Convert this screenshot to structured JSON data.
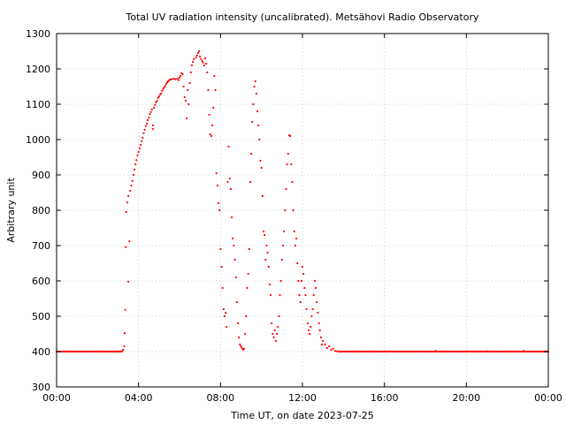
{
  "chart_data": {
    "type": "scatter",
    "title": "Total UV radiation intensity (uncalibrated). Metsähovi Radio Observatory",
    "xlabel": "Time UT, on date 2023-07-25",
    "ylabel": "Arbitrary unit",
    "xlim": [
      0,
      24
    ],
    "ylim": [
      300,
      1300
    ],
    "x_ticks": [
      {
        "value": 0,
        "label": "00:00"
      },
      {
        "value": 4,
        "label": "04:00"
      },
      {
        "value": 8,
        "label": "08:00"
      },
      {
        "value": 12,
        "label": "12:00"
      },
      {
        "value": 16,
        "label": "16:00"
      },
      {
        "value": 20,
        "label": "20:00"
      },
      {
        "value": 24,
        "label": "00:00"
      }
    ],
    "y_ticks": [
      {
        "value": 300,
        "label": "300"
      },
      {
        "value": 400,
        "label": "400"
      },
      {
        "value": 500,
        "label": "500"
      },
      {
        "value": 600,
        "label": "600"
      },
      {
        "value": 700,
        "label": "700"
      },
      {
        "value": 800,
        "label": "800"
      },
      {
        "value": 900,
        "label": "900"
      },
      {
        "value": 1000,
        "label": "1000"
      },
      {
        "value": 1100,
        "label": "1100"
      },
      {
        "value": 1200,
        "label": "1200"
      },
      {
        "value": 1300,
        "label": "1300"
      }
    ],
    "grid": true,
    "marker_color": "#ff0000",
    "series": [
      {
        "points": [
          [
            0.0,
            400
          ],
          [
            0.5,
            400
          ],
          [
            1.0,
            400
          ],
          [
            1.5,
            400
          ],
          [
            2.0,
            400
          ],
          [
            2.5,
            400
          ],
          [
            3.0,
            400
          ],
          [
            3.2,
            401
          ],
          [
            3.25,
            405
          ],
          [
            3.3,
            415
          ],
          [
            3.32,
            452
          ],
          [
            3.35,
            518
          ],
          [
            3.38,
            696
          ],
          [
            3.4,
            795
          ],
          [
            3.45,
            822
          ],
          [
            3.5,
            840
          ],
          [
            3.5,
            598
          ],
          [
            3.55,
            712
          ],
          [
            3.6,
            855
          ],
          [
            3.65,
            870
          ],
          [
            3.7,
            883
          ],
          [
            3.75,
            900
          ],
          [
            3.8,
            915
          ],
          [
            3.85,
            930
          ],
          [
            3.9,
            942
          ],
          [
            3.95,
            955
          ],
          [
            4.0,
            965
          ],
          [
            4.05,
            975
          ],
          [
            4.1,
            985
          ],
          [
            4.15,
            995
          ],
          [
            4.2,
            1005
          ],
          [
            4.25,
            1018
          ],
          [
            4.3,
            1028
          ],
          [
            4.35,
            1038
          ],
          [
            4.4,
            1045
          ],
          [
            4.45,
            1055
          ],
          [
            4.5,
            1062
          ],
          [
            4.55,
            1072
          ],
          [
            4.6,
            1078
          ],
          [
            4.65,
            1085
          ],
          [
            4.7,
            1040
          ],
          [
            4.7,
            1030
          ],
          [
            4.75,
            1090
          ],
          [
            4.8,
            1098
          ],
          [
            4.85,
            1105
          ],
          [
            4.9,
            1110
          ],
          [
            4.95,
            1118
          ],
          [
            5.0,
            1122
          ],
          [
            5.05,
            1128
          ],
          [
            5.1,
            1130
          ],
          [
            5.15,
            1138
          ],
          [
            5.2,
            1143
          ],
          [
            5.25,
            1148
          ],
          [
            5.3,
            1152
          ],
          [
            5.35,
            1158
          ],
          [
            5.4,
            1162
          ],
          [
            5.45,
            1165
          ],
          [
            5.5,
            1168
          ],
          [
            5.55,
            1170
          ],
          [
            5.6,
            1171
          ],
          [
            5.7,
            1172
          ],
          [
            5.8,
            1171
          ],
          [
            5.9,
            1172
          ],
          [
            5.95,
            1168
          ],
          [
            6.0,
            1175
          ],
          [
            6.05,
            1180
          ],
          [
            6.1,
            1188
          ],
          [
            6.15,
            1185
          ],
          [
            6.2,
            1150
          ],
          [
            6.25,
            1120
          ],
          [
            6.3,
            1110
          ],
          [
            6.35,
            1060
          ],
          [
            6.4,
            1140
          ],
          [
            6.45,
            1100
          ],
          [
            6.5,
            1160
          ],
          [
            6.55,
            1190
          ],
          [
            6.6,
            1210
          ],
          [
            6.65,
            1220
          ],
          [
            6.7,
            1228
          ],
          [
            6.8,
            1232
          ],
          [
            6.85,
            1238
          ],
          [
            6.9,
            1245
          ],
          [
            6.95,
            1250
          ],
          [
            7.0,
            1235
          ],
          [
            7.05,
            1228
          ],
          [
            7.1,
            1222
          ],
          [
            7.15,
            1218
          ],
          [
            7.2,
            1210
          ],
          [
            7.25,
            1230
          ],
          [
            7.3,
            1215
          ],
          [
            7.35,
            1190
          ],
          [
            7.4,
            1140
          ],
          [
            7.45,
            1070
          ],
          [
            7.5,
            1015
          ],
          [
            7.55,
            1010
          ],
          [
            7.6,
            1040
          ],
          [
            7.65,
            1090
          ],
          [
            7.7,
            1180
          ],
          [
            7.75,
            1140
          ],
          [
            7.8,
            905
          ],
          [
            7.85,
            870
          ],
          [
            7.9,
            820
          ],
          [
            7.95,
            800
          ],
          [
            8.0,
            690
          ],
          [
            8.05,
            640
          ],
          [
            8.1,
            580
          ],
          [
            8.15,
            520
          ],
          [
            8.2,
            500
          ],
          [
            8.25,
            510
          ],
          [
            8.3,
            470
          ],
          [
            8.35,
            880
          ],
          [
            8.4,
            980
          ],
          [
            8.45,
            890
          ],
          [
            8.5,
            860
          ],
          [
            8.55,
            780
          ],
          [
            8.6,
            720
          ],
          [
            8.65,
            700
          ],
          [
            8.7,
            660
          ],
          [
            8.75,
            610
          ],
          [
            8.8,
            540
          ],
          [
            8.85,
            480
          ],
          [
            8.9,
            440
          ],
          [
            8.95,
            420
          ],
          [
            9.0,
            415
          ],
          [
            9.05,
            410
          ],
          [
            9.1,
            405
          ],
          [
            9.15,
            408
          ],
          [
            9.2,
            450
          ],
          [
            9.25,
            500
          ],
          [
            9.3,
            580
          ],
          [
            9.35,
            620
          ],
          [
            9.4,
            690
          ],
          [
            9.45,
            880
          ],
          [
            9.5,
            960
          ],
          [
            9.55,
            1050
          ],
          [
            9.6,
            1100
          ],
          [
            9.65,
            1150
          ],
          [
            9.7,
            1165
          ],
          [
            9.75,
            1130
          ],
          [
            9.8,
            1080
          ],
          [
            9.85,
            1040
          ],
          [
            9.9,
            1000
          ],
          [
            9.95,
            940
          ],
          [
            10.0,
            920
          ],
          [
            10.05,
            840
          ],
          [
            10.1,
            740
          ],
          [
            10.15,
            730
          ],
          [
            10.2,
            660
          ],
          [
            10.25,
            700
          ],
          [
            10.3,
            680
          ],
          [
            10.35,
            640
          ],
          [
            10.4,
            590
          ],
          [
            10.45,
            560
          ],
          [
            10.5,
            480
          ],
          [
            10.55,
            450
          ],
          [
            10.6,
            440
          ],
          [
            10.65,
            460
          ],
          [
            10.7,
            430
          ],
          [
            10.75,
            450
          ],
          [
            10.8,
            470
          ],
          [
            10.85,
            500
          ],
          [
            10.9,
            560
          ],
          [
            10.95,
            600
          ],
          [
            11.0,
            660
          ],
          [
            11.05,
            700
          ],
          [
            11.1,
            740
          ],
          [
            11.15,
            800
          ],
          [
            11.2,
            860
          ],
          [
            11.25,
            930
          ],
          [
            11.3,
            960
          ],
          [
            11.35,
            1012
          ],
          [
            11.4,
            1010
          ],
          [
            11.45,
            930
          ],
          [
            11.5,
            880
          ],
          [
            11.55,
            800
          ],
          [
            11.6,
            740
          ],
          [
            11.65,
            700
          ],
          [
            11.7,
            720
          ],
          [
            11.75,
            650
          ],
          [
            11.8,
            600
          ],
          [
            11.85,
            560
          ],
          [
            11.9,
            540
          ],
          [
            11.95,
            600
          ],
          [
            12.0,
            640
          ],
          [
            12.05,
            620
          ],
          [
            12.1,
            580
          ],
          [
            12.15,
            560
          ],
          [
            12.2,
            520
          ],
          [
            12.25,
            480
          ],
          [
            12.3,
            460
          ],
          [
            12.35,
            450
          ],
          [
            12.4,
            470
          ],
          [
            12.45,
            500
          ],
          [
            12.5,
            520
          ],
          [
            12.55,
            560
          ],
          [
            12.6,
            600
          ],
          [
            12.65,
            580
          ],
          [
            12.7,
            540
          ],
          [
            12.75,
            510
          ],
          [
            12.8,
            480
          ],
          [
            12.85,
            460
          ],
          [
            12.9,
            440
          ],
          [
            12.95,
            420
          ],
          [
            13.0,
            430
          ],
          [
            13.1,
            420
          ],
          [
            13.2,
            410
          ],
          [
            13.3,
            415
          ],
          [
            13.4,
            405
          ],
          [
            13.5,
            408
          ],
          [
            13.6,
            402
          ],
          [
            13.7,
            401
          ],
          [
            13.8,
            400
          ],
          [
            14.0,
            400
          ],
          [
            14.5,
            400
          ],
          [
            15.0,
            400
          ],
          [
            15.5,
            400
          ],
          [
            16.0,
            400
          ],
          [
            16.5,
            400
          ],
          [
            17.0,
            400
          ],
          [
            17.5,
            400
          ],
          [
            18.0,
            400
          ],
          [
            18.5,
            402
          ],
          [
            19.0,
            400
          ],
          [
            19.5,
            400
          ],
          [
            20.0,
            400
          ],
          [
            20.5,
            400
          ],
          [
            21.0,
            401
          ],
          [
            21.5,
            400
          ],
          [
            22.0,
            400
          ],
          [
            22.5,
            400
          ],
          [
            22.8,
            402
          ],
          [
            23.0,
            400
          ],
          [
            23.5,
            400
          ],
          [
            24.0,
            400
          ]
        ]
      }
    ]
  }
}
